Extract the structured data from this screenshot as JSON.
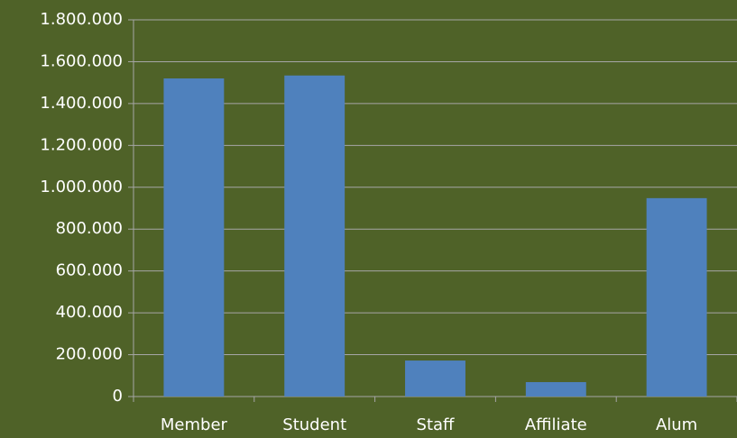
{
  "chart_data": {
    "type": "bar",
    "categories": [
      "Member",
      "Student",
      "Staff",
      "Affiliate",
      "Alum"
    ],
    "values": [
      1520000,
      1534000,
      172000,
      69000,
      948000
    ],
    "color": "#4f81bd",
    "ylim": [
      0,
      1800000
    ],
    "yticks": [
      0,
      {
        "value": 200000,
        "label": "200.000"
      },
      {
        "value": 400000,
        "label": "400.000"
      },
      {
        "value": 600000,
        "label": "600.000"
      },
      {
        "value": 800000,
        "label": "800.000"
      },
      {
        "value": 1000000,
        "label": "1.000.000"
      },
      {
        "value": 1200000,
        "label": "1.200.000"
      },
      {
        "value": 1400000,
        "label": "1.400.000"
      },
      {
        "value": 1600000,
        "label": "1.600.000"
      },
      {
        "value": 1800000,
        "label": "1.800.000"
      }
    ],
    "grid": true
  }
}
